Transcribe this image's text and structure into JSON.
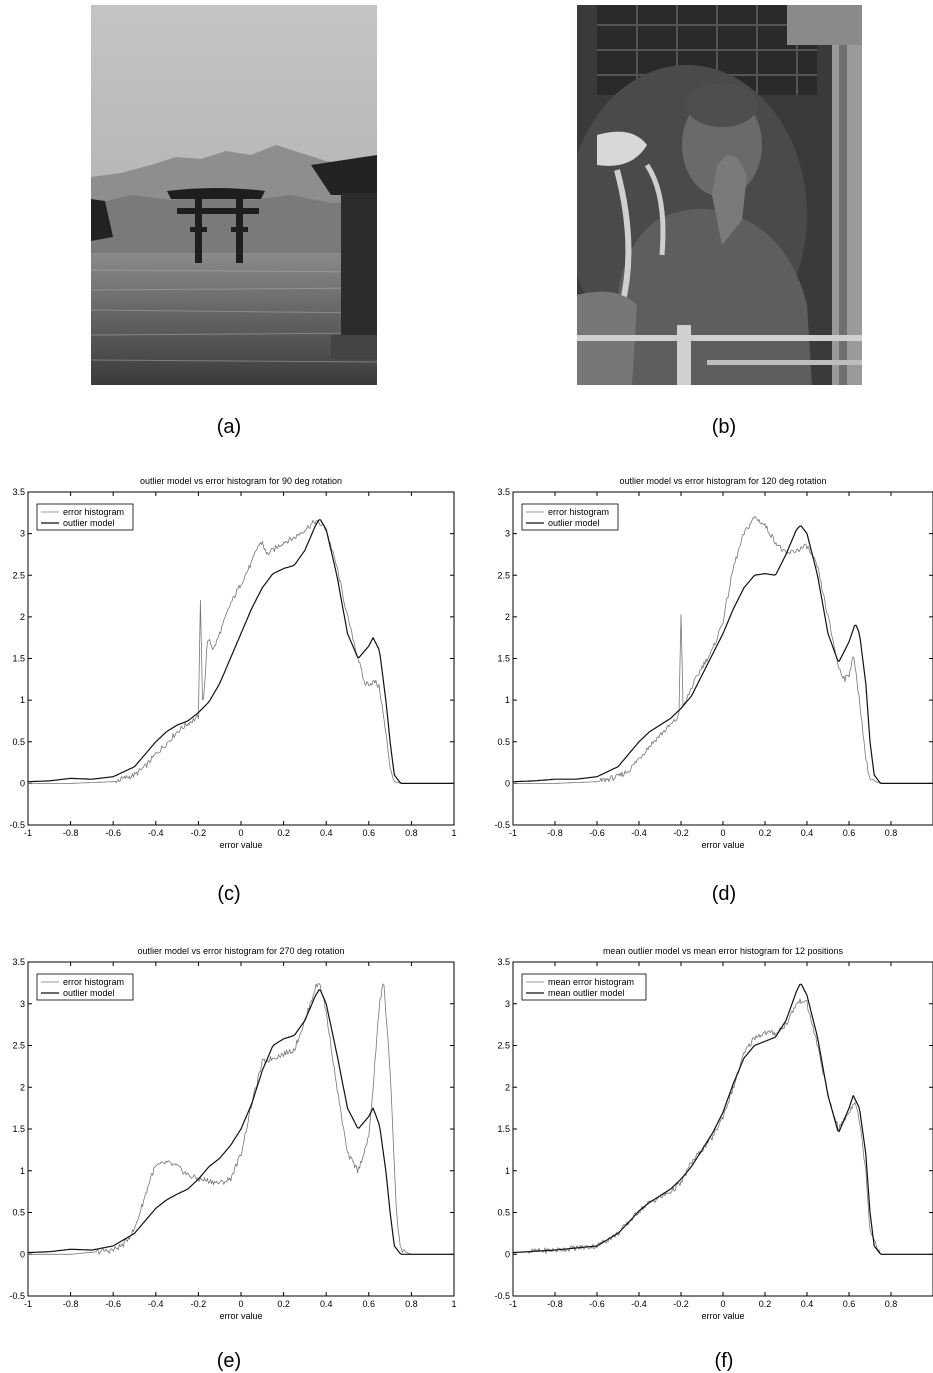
{
  "captions": [
    "(a)",
    "(b)",
    "(c)",
    "(d)",
    "(e)",
    "(f)"
  ],
  "photos": [
    {
      "subject": "torii-gate-in-water"
    },
    {
      "subject": "buddha-statue"
    }
  ],
  "colors": {
    "histogram": "#777777",
    "model": "#111111",
    "axis": "#000000"
  },
  "chart_data": [
    {
      "type": "line",
      "title": "outlier model vs error histogram for 90 deg rotation",
      "xlabel": "error value",
      "ylabel": "",
      "xlim": [
        -1,
        1
      ],
      "ylim": [
        -0.5,
        3.5
      ],
      "xticks": [
        -1,
        -0.8,
        -0.6,
        -0.4,
        -0.2,
        0,
        0.2,
        0.4,
        0.6,
        0.8,
        1
      ],
      "yticks": [
        -0.5,
        0,
        0.5,
        1,
        1.5,
        2,
        2.5,
        3,
        3.5
      ],
      "xtick_labels": [
        "-1",
        "-0.8",
        "-0.6",
        "-0.4",
        "-0.2",
        "0",
        "0.2",
        "0.4",
        "0.6",
        "0.8",
        "1"
      ],
      "ytick_labels": [
        "-0.5",
        "0",
        "0.5",
        "1",
        "1.5",
        "2",
        "2.5",
        "3",
        "3.5"
      ],
      "legend_position": "top-left",
      "series": [
        {
          "name": "error histogram",
          "style": "histogram",
          "x": [
            -1,
            -0.8,
            -0.6,
            -0.5,
            -0.45,
            -0.4,
            -0.35,
            -0.3,
            -0.25,
            -0.2,
            -0.19,
            -0.18,
            -0.17,
            -0.16,
            -0.15,
            -0.13,
            -0.1,
            -0.05,
            0,
            0.05,
            0.08,
            0.1,
            0.12,
            0.15,
            0.2,
            0.25,
            0.3,
            0.35,
            0.38,
            0.4,
            0.45,
            0.5,
            0.55,
            0.58,
            0.6,
            0.63,
            0.65,
            0.68,
            0.7,
            0.72,
            0.75,
            0.8,
            1
          ],
          "y": [
            0,
            0,
            0.02,
            0.1,
            0.2,
            0.35,
            0.48,
            0.62,
            0.72,
            0.8,
            2.25,
            0.9,
            1.2,
            1.65,
            1.75,
            1.6,
            1.8,
            2.15,
            2.4,
            2.65,
            2.85,
            2.9,
            2.75,
            2.8,
            2.9,
            2.95,
            3.05,
            3.15,
            3.1,
            3.05,
            2.6,
            2,
            1.5,
            1.2,
            1.2,
            1.22,
            1.15,
            0.6,
            0.2,
            0.02,
            0,
            0,
            0
          ]
        },
        {
          "name": "outlier model",
          "style": "model",
          "x": [
            -1,
            -0.9,
            -0.8,
            -0.7,
            -0.6,
            -0.5,
            -0.45,
            -0.4,
            -0.35,
            -0.3,
            -0.25,
            -0.2,
            -0.15,
            -0.1,
            -0.05,
            0,
            0.05,
            0.1,
            0.15,
            0.2,
            0.25,
            0.3,
            0.35,
            0.37,
            0.4,
            0.45,
            0.5,
            0.55,
            0.6,
            0.62,
            0.65,
            0.68,
            0.7,
            0.72,
            0.75,
            0.8,
            1
          ],
          "y": [
            0.02,
            0.03,
            0.06,
            0.05,
            0.08,
            0.2,
            0.35,
            0.5,
            0.62,
            0.7,
            0.75,
            0.85,
            0.98,
            1.2,
            1.5,
            1.8,
            2.1,
            2.35,
            2.52,
            2.58,
            2.62,
            2.8,
            3.1,
            3.18,
            3.05,
            2.5,
            1.8,
            1.5,
            1.65,
            1.75,
            1.6,
            1.0,
            0.5,
            0.1,
            0,
            0,
            0
          ]
        }
      ]
    },
    {
      "type": "line",
      "title": "outlier model vs error histogram for 120 deg rotation",
      "xlabel": "error value",
      "ylabel": "",
      "xlim": [
        -1,
        1
      ],
      "ylim": [
        -0.5,
        3.5
      ],
      "xticks": [
        -1,
        -0.8,
        -0.6,
        -0.4,
        -0.2,
        0,
        0.2,
        0.4,
        0.6,
        0.8
      ],
      "yticks": [
        -0.5,
        0,
        0.5,
        1,
        1.5,
        2,
        2.5,
        3,
        3.5
      ],
      "xtick_labels": [
        "-1",
        "-0.8",
        "-0.6",
        "-0.4",
        "-0.2",
        "0",
        "0.2",
        "0.4",
        "0.6",
        "0.8"
      ],
      "ytick_labels": [
        "-0.5",
        "0",
        "0.5",
        "1",
        "1.5",
        "2",
        "2.5",
        "3",
        "3.5"
      ],
      "legend_position": "top-left",
      "series": [
        {
          "name": "error histogram",
          "style": "histogram",
          "x": [
            -1,
            -0.8,
            -0.6,
            -0.5,
            -0.45,
            -0.4,
            -0.35,
            -0.3,
            -0.25,
            -0.21,
            -0.2,
            -0.19,
            -0.15,
            -0.1,
            -0.05,
            0,
            0.05,
            0.1,
            0.15,
            0.2,
            0.25,
            0.3,
            0.35,
            0.4,
            0.45,
            0.5,
            0.55,
            0.58,
            0.6,
            0.62,
            0.65,
            0.68,
            0.7,
            0.75,
            1
          ],
          "y": [
            0,
            0,
            0.02,
            0.08,
            0.15,
            0.3,
            0.45,
            0.58,
            0.7,
            0.8,
            2.05,
            0.9,
            1.15,
            1.4,
            1.6,
            1.95,
            2.6,
            3.0,
            3.2,
            3.1,
            2.9,
            2.75,
            2.8,
            2.85,
            2.6,
            2.0,
            1.4,
            1.25,
            1.3,
            1.55,
            1.0,
            0.3,
            0.05,
            0,
            0
          ]
        },
        {
          "name": "outlier model",
          "style": "model",
          "x": [
            -1,
            -0.9,
            -0.8,
            -0.7,
            -0.6,
            -0.5,
            -0.45,
            -0.4,
            -0.35,
            -0.3,
            -0.25,
            -0.2,
            -0.15,
            -0.1,
            -0.05,
            0,
            0.05,
            0.1,
            0.15,
            0.2,
            0.25,
            0.3,
            0.35,
            0.37,
            0.4,
            0.45,
            0.5,
            0.55,
            0.6,
            0.63,
            0.65,
            0.68,
            0.7,
            0.72,
            0.75,
            0.8,
            1
          ],
          "y": [
            0.02,
            0.03,
            0.05,
            0.05,
            0.08,
            0.2,
            0.35,
            0.5,
            0.62,
            0.7,
            0.78,
            0.9,
            1.05,
            1.3,
            1.55,
            1.8,
            2.1,
            2.35,
            2.5,
            2.52,
            2.5,
            2.75,
            3.05,
            3.1,
            3.0,
            2.5,
            1.8,
            1.45,
            1.7,
            1.92,
            1.8,
            1.2,
            0.5,
            0.1,
            0,
            0,
            0
          ]
        }
      ]
    },
    {
      "type": "line",
      "title": "outlier model vs error histogram for 270 deg rotation",
      "xlabel": "error value",
      "ylabel": "",
      "xlim": [
        -1,
        1
      ],
      "ylim": [
        -0.5,
        3.5
      ],
      "xticks": [
        -1,
        -0.8,
        -0.6,
        -0.4,
        -0.2,
        0,
        0.2,
        0.4,
        0.6,
        0.8,
        1
      ],
      "yticks": [
        -0.5,
        0,
        0.5,
        1,
        1.5,
        2,
        2.5,
        3,
        3.5
      ],
      "xtick_labels": [
        "-1",
        "-0.8",
        "-0.6",
        "-0.4",
        "-0.2",
        "0",
        "0.2",
        "0.4",
        "0.6",
        "0.8",
        "1"
      ],
      "ytick_labels": [
        "-0.5",
        "0",
        "0.5",
        "1",
        "1.5",
        "2",
        "2.5",
        "3",
        "3.5"
      ],
      "legend_position": "top-left",
      "series": [
        {
          "name": "error histogram",
          "style": "histogram",
          "x": [
            -1,
            -0.8,
            -0.6,
            -0.55,
            -0.5,
            -0.45,
            -0.42,
            -0.4,
            -0.35,
            -0.3,
            -0.25,
            -0.2,
            -0.15,
            -0.1,
            -0.05,
            0,
            0.05,
            0.1,
            0.15,
            0.2,
            0.25,
            0.3,
            0.35,
            0.37,
            0.4,
            0.45,
            0.5,
            0.55,
            0.6,
            0.62,
            0.65,
            0.67,
            0.7,
            0.73,
            0.75,
            0.8,
            1
          ],
          "y": [
            0,
            0,
            0.05,
            0.12,
            0.3,
            0.7,
            0.95,
            1.05,
            1.1,
            1.05,
            0.95,
            0.9,
            0.88,
            0.85,
            0.9,
            1.2,
            1.8,
            2.3,
            2.35,
            2.4,
            2.45,
            2.8,
            3.2,
            3.25,
            2.9,
            2.0,
            1.2,
            1.0,
            1.4,
            2.0,
            3.0,
            3.27,
            2.2,
            0.5,
            0.05,
            0,
            0
          ]
        },
        {
          "name": "outlier model",
          "style": "model",
          "x": [
            -1,
            -0.9,
            -0.8,
            -0.7,
            -0.6,
            -0.5,
            -0.45,
            -0.4,
            -0.35,
            -0.3,
            -0.25,
            -0.2,
            -0.15,
            -0.1,
            -0.05,
            0,
            0.05,
            0.1,
            0.15,
            0.2,
            0.25,
            0.3,
            0.35,
            0.37,
            0.4,
            0.45,
            0.5,
            0.55,
            0.6,
            0.62,
            0.65,
            0.68,
            0.7,
            0.72,
            0.75,
            0.8,
            1
          ],
          "y": [
            0.02,
            0.03,
            0.06,
            0.05,
            0.1,
            0.25,
            0.4,
            0.55,
            0.65,
            0.72,
            0.78,
            0.9,
            1.05,
            1.15,
            1.3,
            1.5,
            1.8,
            2.2,
            2.5,
            2.58,
            2.62,
            2.8,
            3.1,
            3.18,
            3.0,
            2.4,
            1.75,
            1.5,
            1.65,
            1.75,
            1.55,
            1.0,
            0.5,
            0.1,
            0,
            0,
            0
          ]
        }
      ]
    },
    {
      "type": "line",
      "title": "mean outlier model vs mean error histogram for 12 positions",
      "xlabel": "error value",
      "ylabel": "",
      "xlim": [
        -1,
        1
      ],
      "ylim": [
        -0.5,
        3.5
      ],
      "xticks": [
        -1,
        -0.8,
        -0.6,
        -0.4,
        -0.2,
        0,
        0.2,
        0.4,
        0.6,
        0.8
      ],
      "yticks": [
        -0.5,
        0,
        0.5,
        1,
        1.5,
        2,
        2.5,
        3,
        3.5
      ],
      "xtick_labels": [
        "-1",
        "-0.8",
        "-0.6",
        "-0.4",
        "-0.2",
        "0",
        "0.2",
        "0.4",
        "0.6",
        "0.8"
      ],
      "ytick_labels": [
        "-0.5",
        "0",
        "0.5",
        "1",
        "1.5",
        "2",
        "2.5",
        "3",
        "3.5"
      ],
      "legend_position": "top-left",
      "series": [
        {
          "name": "mean error histogram",
          "style": "histogram",
          "x": [
            -1,
            -0.8,
            -0.6,
            -0.5,
            -0.45,
            -0.4,
            -0.35,
            -0.3,
            -0.25,
            -0.2,
            -0.15,
            -0.1,
            -0.05,
            0,
            0.05,
            0.1,
            0.15,
            0.2,
            0.25,
            0.3,
            0.35,
            0.38,
            0.4,
            0.45,
            0.5,
            0.55,
            0.6,
            0.63,
            0.65,
            0.68,
            0.7,
            0.75,
            1
          ],
          "y": [
            0.02,
            0.05,
            0.1,
            0.25,
            0.38,
            0.52,
            0.62,
            0.68,
            0.75,
            0.85,
            1.1,
            1.25,
            1.4,
            1.65,
            2.0,
            2.4,
            2.6,
            2.65,
            2.65,
            2.75,
            3.0,
            3.05,
            3.0,
            2.5,
            1.9,
            1.5,
            1.7,
            1.85,
            1.6,
            1.0,
            0.3,
            0,
            0
          ]
        },
        {
          "name": "mean outlier model",
          "style": "model",
          "x": [
            -1,
            -0.8,
            -0.6,
            -0.5,
            -0.45,
            -0.4,
            -0.35,
            -0.3,
            -0.25,
            -0.2,
            -0.15,
            -0.1,
            -0.05,
            0,
            0.05,
            0.1,
            0.15,
            0.2,
            0.25,
            0.3,
            0.35,
            0.37,
            0.4,
            0.45,
            0.5,
            0.55,
            0.6,
            0.62,
            0.65,
            0.68,
            0.7,
            0.72,
            0.75,
            1
          ],
          "y": [
            0.02,
            0.05,
            0.1,
            0.25,
            0.38,
            0.52,
            0.62,
            0.7,
            0.78,
            0.9,
            1.05,
            1.25,
            1.45,
            1.7,
            2.05,
            2.35,
            2.5,
            2.55,
            2.6,
            2.8,
            3.15,
            3.25,
            3.1,
            2.6,
            1.9,
            1.45,
            1.75,
            1.9,
            1.75,
            1.2,
            0.5,
            0.1,
            0,
            0
          ]
        }
      ]
    }
  ]
}
